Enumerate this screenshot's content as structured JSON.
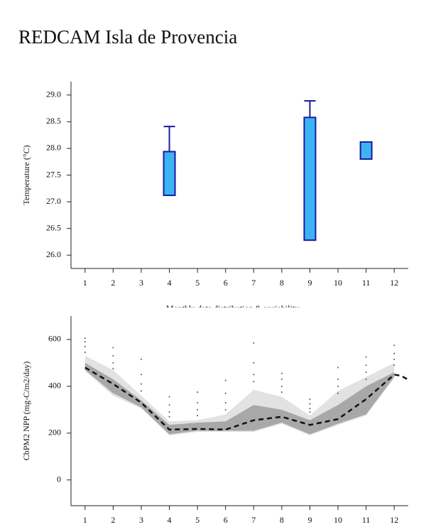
{
  "header": {
    "title": "REDCAM Isla de Provencia"
  },
  "chart_data": [
    {
      "type": "box",
      "ylabel": "Temperature (°C)",
      "xlabel": "Monthly data distribution & variability",
      "xlim": [
        0.5,
        12.5
      ],
      "xticks": [
        1,
        2,
        3,
        4,
        5,
        6,
        7,
        8,
        9,
        10,
        11,
        12
      ],
      "ylim": [
        25.75,
        29.25
      ],
      "yticks": [
        {
          "value": 26,
          "label": "26.0"
        },
        {
          "value": 26.5,
          "label": "26.5"
        },
        {
          "value": 27,
          "label": "27.0"
        },
        {
          "value": 27.5,
          "label": "27.5"
        },
        {
          "value": 28,
          "label": "28.0"
        },
        {
          "value": 28.5,
          "label": "28.5"
        },
        {
          "value": 29,
          "label": "29.0"
        }
      ],
      "color": "#3db4f2",
      "edge_color": "#1a1aa0",
      "x": [
        4,
        9,
        11
      ],
      "q1": [
        27.12,
        26.28,
        27.8
      ],
      "q3": [
        27.94,
        28.58,
        28.12
      ],
      "max": [
        28.41,
        28.89,
        null
      ]
    },
    {
      "type": "line",
      "ylabel": "CbPM2 NPP (mg-C/m2/day)",
      "xlim": [
        0.5,
        12.5
      ],
      "xticks": [
        1,
        2,
        3,
        4,
        5,
        6,
        7,
        8,
        9,
        10,
        11,
        12
      ],
      "ylim": [
        -110,
        700
      ],
      "yticks": [
        0,
        200,
        400,
        600
      ],
      "bands": [
        {
          "color": "#e2e2e2",
          "x": [
            1,
            2,
            3,
            4,
            5,
            6,
            7,
            8,
            9,
            10,
            11,
            12
          ],
          "upper": [
            530,
            470,
            360,
            250,
            255,
            280,
            385,
            355,
            275,
            380,
            440,
            500
          ],
          "lower": [
            465,
            360,
            305,
            190,
            205,
            205,
            205,
            240,
            190,
            235,
            275,
            435
          ]
        },
        {
          "color": "#a8a8a8",
          "x": [
            1,
            2,
            3,
            4,
            5,
            6,
            7,
            8,
            9,
            10,
            11,
            12
          ],
          "upper": [
            500,
            430,
            340,
            235,
            245,
            250,
            320,
            300,
            255,
            320,
            400,
            460
          ],
          "lower": [
            470,
            370,
            310,
            195,
            210,
            210,
            210,
            245,
            195,
            240,
            280,
            440
          ]
        }
      ],
      "points": {
        "color": "#555555",
        "x": [
          1,
          1,
          1,
          1,
          2,
          2,
          2,
          2,
          3,
          3,
          3,
          3,
          4,
          4,
          4,
          4,
          5,
          5,
          5,
          5,
          6,
          6,
          6,
          6,
          7,
          7,
          7,
          7,
          8,
          8,
          8,
          8,
          9,
          9,
          9,
          9,
          10,
          10,
          10,
          10,
          11,
          11,
          11,
          11,
          12,
          12,
          12,
          12
        ],
        "y": [
          605,
          590,
          570,
          545,
          565,
          530,
          500,
          475,
          515,
          450,
          410,
          380,
          355,
          320,
          290,
          270,
          375,
          330,
          300,
          275,
          425,
          370,
          330,
          300,
          585,
          500,
          450,
          420,
          455,
          430,
          400,
          375,
          345,
          325,
          305,
          290,
          480,
          430,
          400,
          370,
          525,
          490,
          460,
          430,
          575,
          540,
          515,
          490
        ]
      },
      "series": [
        {
          "color": "#111111",
          "dash": "7 5",
          "x": [
            1,
            2,
            3,
            4,
            5,
            6,
            7,
            8,
            9,
            10,
            11,
            12,
            12.25,
            12.5
          ],
          "values": [
            480,
            410,
            330,
            215,
            218,
            215,
            255,
            270,
            235,
            260,
            345,
            450,
            445,
            428
          ]
        }
      ]
    }
  ]
}
